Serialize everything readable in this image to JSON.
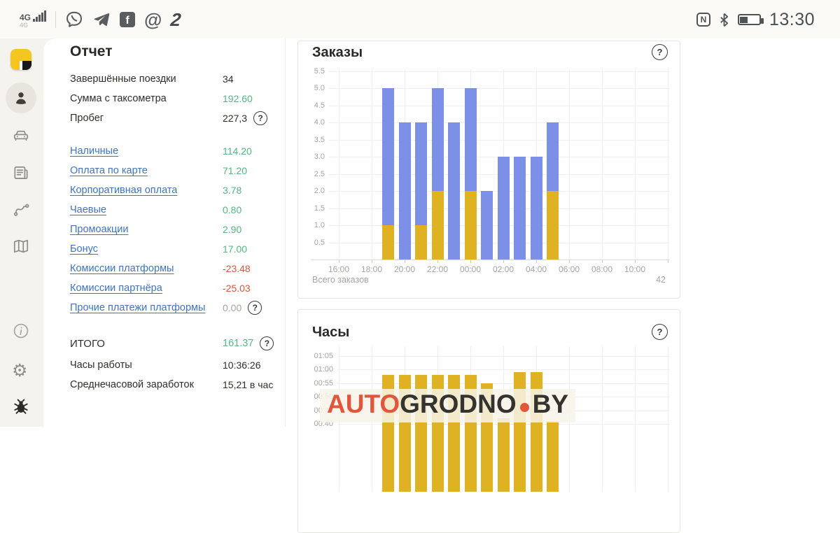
{
  "status_bar": {
    "network_label": "4G",
    "network_label_secondary": "4G",
    "time": "13:30",
    "left_app_icons": [
      "viber",
      "telegram",
      "facebook",
      "mail",
      "app-2"
    ],
    "right_icons": [
      "nfc",
      "bluetooth",
      "battery"
    ],
    "battery_level_percent": 40
  },
  "sidebar": {
    "items": [
      "app-logo",
      "profile",
      "car",
      "news",
      "route",
      "map",
      "info",
      "settings",
      "bug-report"
    ],
    "active_item": "profile"
  },
  "icons": {
    "help": "?",
    "nfc_letter": "N",
    "facebook_letter": "f",
    "mail_glyph": "@",
    "app2_glyph": "2",
    "gear_glyph": "⚙"
  },
  "report": {
    "title": "Отчет",
    "summary_rows": [
      {
        "label": "Завершённые поездки",
        "value": "34",
        "value_color": "dark",
        "help": false
      },
      {
        "label": "Сумма с таксометра",
        "value": "192.60",
        "value_color": "green",
        "help": false
      },
      {
        "label": "Пробег",
        "value": "227,3",
        "value_color": "dark",
        "help": true
      }
    ],
    "link_rows": [
      {
        "label": "Наличные",
        "value": "114.20",
        "value_color": "green",
        "help": false
      },
      {
        "label": "Оплата по карте",
        "value": "71.20",
        "value_color": "green",
        "help": false
      },
      {
        "label": "Корпоративная оплата",
        "value": "3.78",
        "value_color": "green",
        "help": false
      },
      {
        "label": "Чаевые",
        "value": "0.80",
        "value_color": "green",
        "help": false
      },
      {
        "label": "Промоакции",
        "value": "2.90",
        "value_color": "green",
        "help": false
      },
      {
        "label": "Бонус",
        "value": "17.00",
        "value_color": "green",
        "help": false
      },
      {
        "label": "Комиссии платформы",
        "value": "-23.48",
        "value_color": "red",
        "help": false
      },
      {
        "label": "Комиссии партнёра",
        "value": "-25.03",
        "value_color": "red",
        "help": false
      },
      {
        "label": "Прочие платежи платформы",
        "value": "0.00",
        "value_color": "gray",
        "help": true
      }
    ],
    "total_rows": [
      {
        "label": "ИТОГО",
        "value": "161.37",
        "value_color": "green",
        "help": true
      },
      {
        "label": "Часы работы",
        "value": "10:36:26",
        "value_color": "dark",
        "help": false
      },
      {
        "label": "Среднечасовой заработок",
        "value": "15,21 в час",
        "value_color": "dark",
        "help": false
      }
    ]
  },
  "orders_card": {
    "title": "Заказы",
    "footer_label": "Всего заказов",
    "footer_value": "42"
  },
  "hours_card": {
    "title": "Часы"
  },
  "watermark": {
    "part1": "AUTO",
    "part2": "GRODNO",
    "part3": "BY"
  },
  "colors": {
    "bar_blue": "#7D90E8",
    "bar_yellow": "#DFB224",
    "value_green": "#57B584",
    "value_red": "#CE5A41",
    "link_blue": "#4173BE",
    "watermark_orange": "#E2573B",
    "watermark_dark": "#35332F",
    "sidebar_bg": "#F5F3ED",
    "logo_yellow": "#F6C620"
  },
  "chart_data": [
    {
      "type": "bar",
      "title": "Заказы",
      "stacked": true,
      "categories": [
        "19:00",
        "20:00",
        "21:00",
        "22:00",
        "23:00",
        "00:00",
        "01:00",
        "02:00",
        "03:00",
        "04:00",
        "05:00"
      ],
      "series": [
        {
          "name": "yellow-segment",
          "values": [
            1,
            0,
            1,
            2,
            0,
            2,
            0,
            0,
            0,
            0,
            2
          ]
        },
        {
          "name": "blue-segment",
          "values": [
            4,
            4,
            3,
            3,
            4,
            3,
            2,
            3,
            3,
            3,
            2
          ]
        }
      ],
      "bar_totals": [
        5,
        4,
        4,
        5,
        4,
        5,
        2,
        3,
        3,
        3,
        4
      ],
      "x_axis_ticks": [
        "16:00",
        "18:00",
        "20:00",
        "22:00",
        "00:00",
        "02:00",
        "04:00",
        "06:00",
        "08:00",
        "10:00"
      ],
      "y_ticks": [
        0.5,
        1.0,
        1.5,
        2.0,
        2.5,
        3.0,
        3.5,
        4.0,
        4.5,
        5.0,
        5.5
      ],
      "ylim": [
        0,
        5.5
      ],
      "grid": true,
      "legend": false,
      "total_orders": 42
    },
    {
      "type": "bar",
      "title": "Часы",
      "categories": [
        "19:00",
        "20:00",
        "21:00",
        "22:00",
        "23:00",
        "00:00",
        "01:00",
        "02:00",
        "03:00",
        "04:00",
        "05:00"
      ],
      "values_minutes": [
        58,
        58,
        58,
        58,
        58,
        58,
        55,
        42,
        59,
        59,
        41
      ],
      "y_tick_labels": [
        "01:05",
        "01:00",
        "00:55",
        "00:50",
        "00:45",
        "00:40"
      ],
      "grid": true,
      "legend": false
    }
  ]
}
